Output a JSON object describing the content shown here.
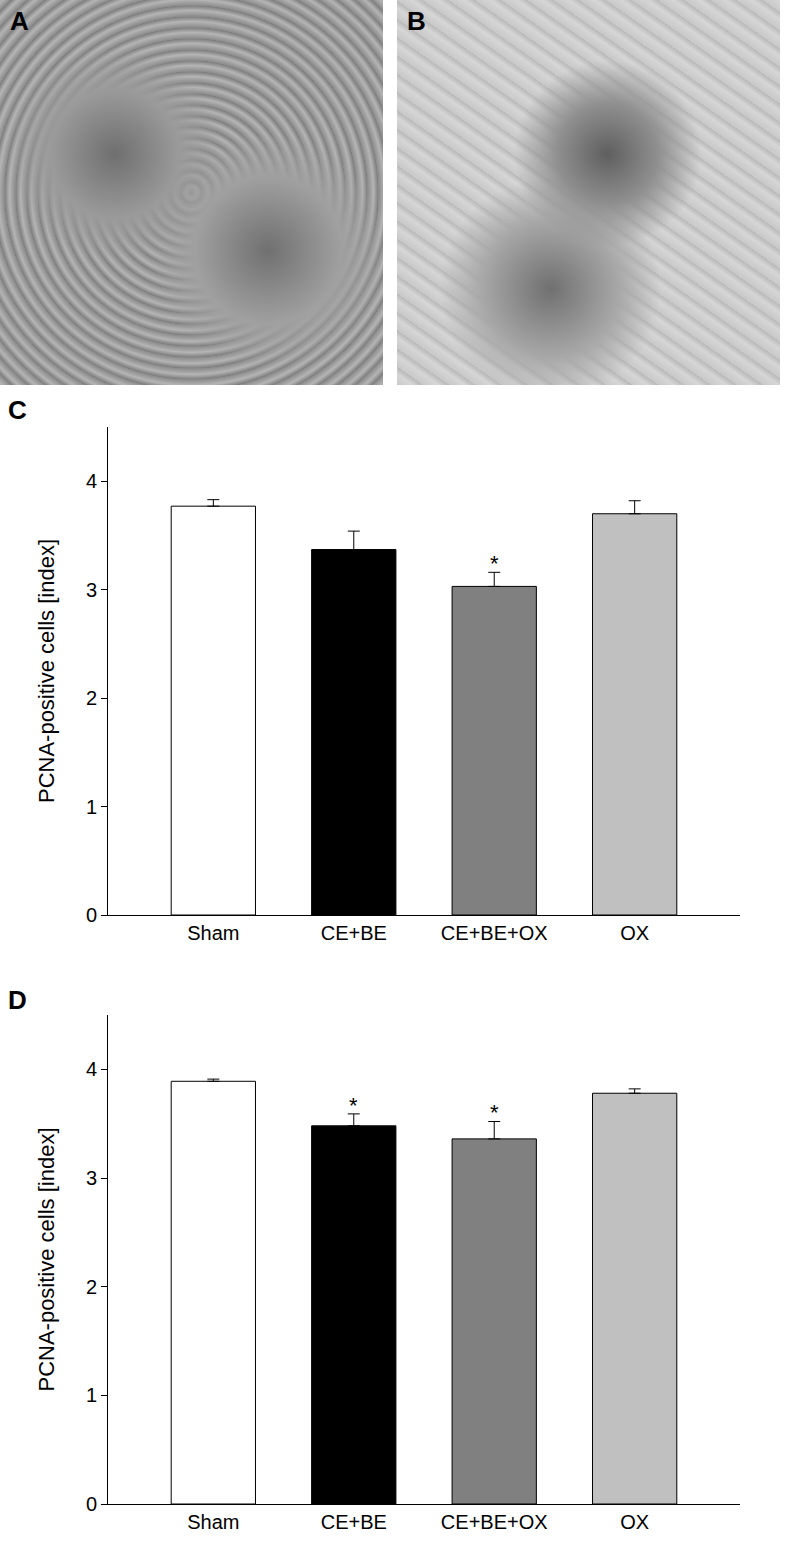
{
  "images": [
    {
      "label": "A"
    },
    {
      "label": "B"
    }
  ],
  "chart_data": [
    {
      "type": "bar",
      "panel": "C",
      "categories": [
        "Sham",
        "CE+BE",
        "CE+BE+OX",
        "OX"
      ],
      "values": [
        3.77,
        3.37,
        3.03,
        3.7
      ],
      "errors": [
        0.06,
        0.17,
        0.13,
        0.12
      ],
      "colors": [
        "#ffffff",
        "#000000",
        "#808080",
        "#c0c0c0"
      ],
      "y_label": "PCNA-positive cells [index]",
      "ylim": [
        0,
        4.5
      ],
      "yticks": [
        0,
        1,
        2,
        3,
        4
      ],
      "grid": false,
      "annotations": [
        {
          "category": "CE+BE+OX",
          "text": "*"
        }
      ]
    },
    {
      "type": "bar",
      "panel": "D",
      "categories": [
        "Sham",
        "CE+BE",
        "CE+BE+OX",
        "OX"
      ],
      "values": [
        3.89,
        3.48,
        3.36,
        3.78
      ],
      "errors": [
        0.02,
        0.11,
        0.16,
        0.04
      ],
      "colors": [
        "#ffffff",
        "#000000",
        "#808080",
        "#c0c0c0"
      ],
      "y_label": "PCNA-positive cells [index]",
      "ylim": [
        0,
        4.5
      ],
      "yticks": [
        0,
        1,
        2,
        3,
        4
      ],
      "grid": false,
      "annotations": [
        {
          "category": "CE+BE",
          "text": "*"
        },
        {
          "category": "CE+BE+OX",
          "text": "*"
        }
      ]
    }
  ]
}
